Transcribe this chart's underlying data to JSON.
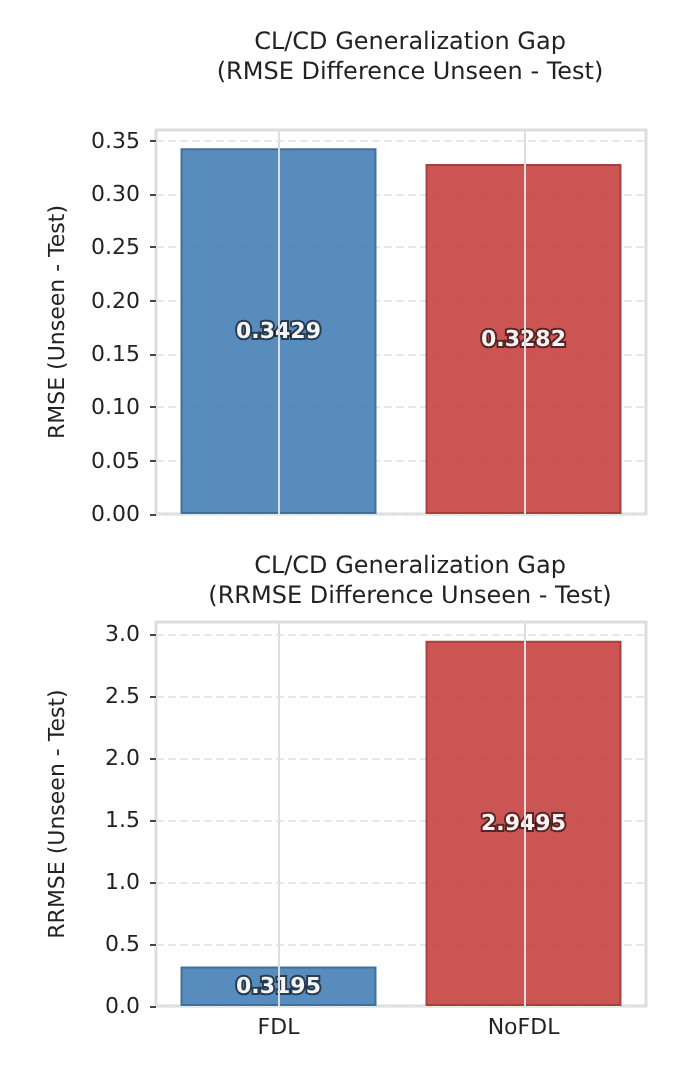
{
  "chart_data": [
    {
      "type": "bar",
      "title": "CL/CD Generalization Gap\n(RMSE Difference Unseen - Test)",
      "ylabel": "RMSE (Unseen - Test)",
      "categories": [
        null,
        null
      ],
      "values": [
        0.3429,
        0.3282
      ],
      "colors": [
        "#4f86b9",
        "#c94c4b"
      ],
      "ylim": [
        0,
        0.36
      ],
      "yticks": [
        {
          "value": 0,
          "label": "0.00"
        },
        {
          "value": 0.05,
          "label": "0.05"
        },
        {
          "value": 0.1,
          "label": "0.10"
        },
        {
          "value": 0.15,
          "label": "0.15"
        },
        {
          "value": 0.2,
          "label": "0.20"
        },
        {
          "value": 0.25,
          "label": "0.25"
        },
        {
          "value": 0.3,
          "label": "0.30"
        },
        {
          "value": 0.35,
          "label": "0.35"
        }
      ],
      "grid": true,
      "data_labels": true,
      "tick_labels": "y"
    },
    {
      "type": "bar",
      "title": "CL/CD Generalization Gap\n(RRMSE Difference Unseen - Test)",
      "ylabel": "RRMSE (Unseen - Test)",
      "categories": [
        "FDL",
        "NoFDL"
      ],
      "values": [
        0.3195,
        2.9495
      ],
      "colors": [
        "#4f86b9",
        "#c94c4b"
      ],
      "ylim": [
        0,
        3.1
      ],
      "yticks": [
        {
          "value": 0,
          "label": "0.0"
        },
        {
          "value": 0.5,
          "label": "0.5"
        },
        {
          "value": 1,
          "label": "1.0"
        },
        {
          "value": 1.5,
          "label": "1.5"
        },
        {
          "value": 2,
          "label": "2.0"
        },
        {
          "value": 2.5,
          "label": "2.5"
        },
        {
          "value": 3,
          "label": "3.0"
        }
      ],
      "grid": true,
      "data_labels": true
    }
  ]
}
